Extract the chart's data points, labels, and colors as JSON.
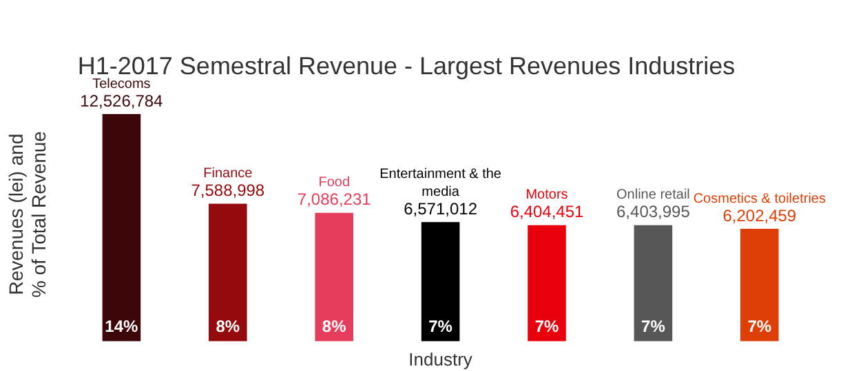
{
  "chart_data": {
    "type": "bar",
    "title": "H1-2017 Semestral Revenue - Largest Revenues Industries",
    "xlabel": "Industry",
    "ylabel": "Revenues (lei) and\n% of Total Revenue",
    "categories": [
      "Telecoms",
      "Finance",
      "Food",
      "Entertainment & the media",
      "Motors",
      "Online retail",
      "Cosmetics & toiletries"
    ],
    "values": [
      12526784,
      7588998,
      7086231,
      6571012,
      6404451,
      6403995,
      6202459
    ],
    "value_labels": [
      "12,526,784",
      "7,588,998",
      "7,086,231",
      "6,571,012",
      "6,404,451",
      "6,403,995",
      "6,202,459"
    ],
    "colors": [
      "#3d0709",
      "#950a0c",
      "#e63d5c",
      "#000000",
      "#e8000c",
      "#575757",
      "#dd3f06"
    ],
    "annotations": [
      "14%",
      "8%",
      "8%",
      "7%",
      "7%",
      "7%",
      "7%"
    ]
  }
}
